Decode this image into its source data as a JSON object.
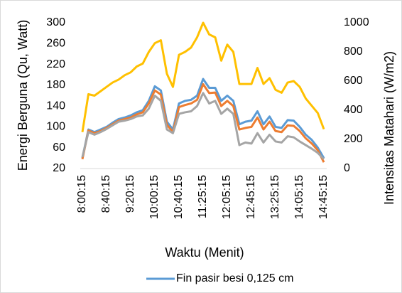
{
  "chart_data": {
    "type": "line",
    "x_label": "Waktu (Menit)",
    "y_label": "Energi Berguna (Qu, Watt)",
    "y2_label": "Intensitas Matahari (W/m2)",
    "categories": [
      "8:00:15",
      null,
      null,
      null,
      "8:40:15",
      null,
      null,
      null,
      "9:20:15",
      null,
      null,
      null,
      "10:00:15",
      null,
      null,
      null,
      "10:40:15",
      null,
      null,
      null,
      "11:25:15",
      null,
      null,
      null,
      "12:05:15",
      null,
      null,
      null,
      "12:45:15",
      null,
      null,
      null,
      "13:25:15",
      null,
      null,
      null,
      "14:05:15",
      null,
      null,
      null,
      "14:45:15"
    ],
    "ylim": [
      20,
      300
    ],
    "yticks": [
      20,
      60,
      100,
      140,
      180,
      220,
      260,
      300
    ],
    "y2lim": [
      0,
      1000
    ],
    "y2ticks": [
      0,
      200,
      400,
      600,
      800,
      1000
    ],
    "series": [
      {
        "name": "Fin pasir besi 0,125 cm",
        "color": "#5b9bd5",
        "values": [
          40,
          95,
          90,
          95,
          100,
          108,
          115,
          118,
          122,
          128,
          132,
          150,
          178,
          170,
          110,
          95,
          145,
          150,
          152,
          160,
          192,
          175,
          175,
          150,
          160,
          150,
          105,
          110,
          112,
          130,
          105,
          120,
          100,
          98,
          113,
          112,
          100,
          85,
          75,
          60,
          40
        ]
      },
      {
        "color": "#ed7d31",
        "values": [
          38,
          93,
          88,
          92,
          98,
          105,
          112,
          115,
          118,
          124,
          128,
          145,
          170,
          162,
          104,
          90,
          138,
          142,
          145,
          152,
          182,
          165,
          166,
          140,
          150,
          140,
          95,
          98,
          100,
          118,
          95,
          110,
          92,
          90,
          103,
          102,
          92,
          78,
          68,
          55,
          32
        ]
      },
      {
        "color": "#a5a5a5",
        "values": [
          42,
          90,
          85,
          90,
          96,
          103,
          110,
          112,
          115,
          120,
          122,
          135,
          160,
          150,
          95,
          88,
          125,
          128,
          130,
          140,
          165,
          145,
          150,
          125,
          135,
          125,
          65,
          70,
          68,
          88,
          70,
          85,
          72,
          70,
          82,
          80,
          72,
          65,
          58,
          50,
          38
        ]
      },
      {
        "color": "#ffc000",
        "axis": "y2",
        "values": [
          250,
          510,
          500,
          530,
          560,
          590,
          610,
          640,
          660,
          700,
          720,
          800,
          860,
          880,
          650,
          560,
          780,
          800,
          830,
          900,
          1000,
          920,
          900,
          740,
          850,
          800,
          580,
          580,
          580,
          690,
          580,
          620,
          540,
          520,
          590,
          600,
          560,
          480,
          430,
          380,
          270
        ]
      }
    ]
  }
}
